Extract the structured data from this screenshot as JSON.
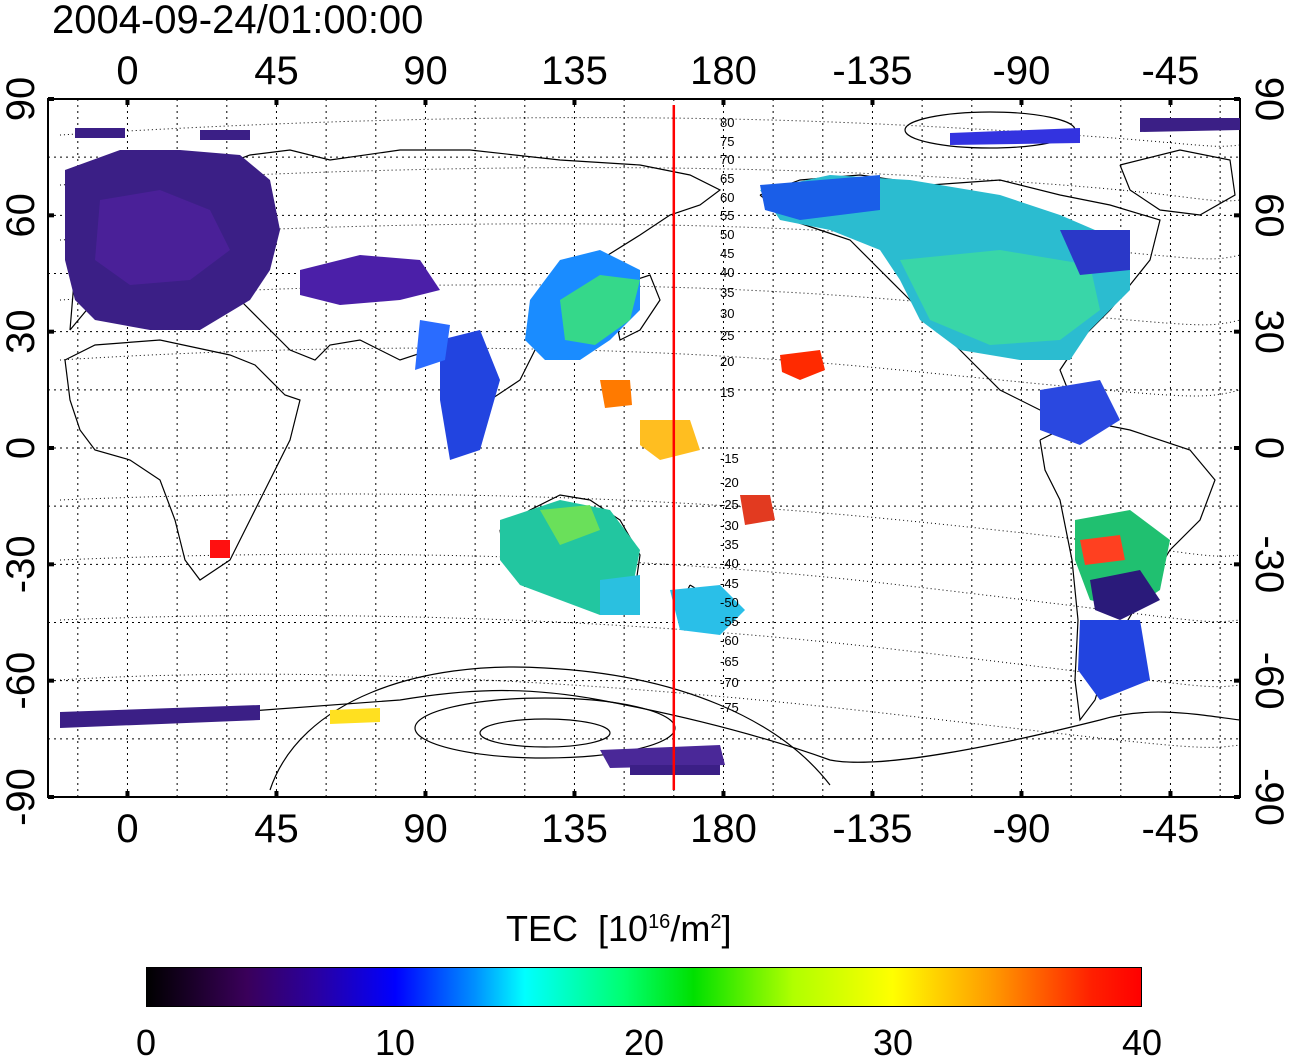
{
  "title": "2004-09-24/01:00:00",
  "map": {
    "projection": "equirectangular",
    "lon_ticks_top": [
      "0",
      "45",
      "90",
      "135",
      "180",
      "-135",
      "-90",
      "-45"
    ],
    "lon_ticks_bottom": [
      "0",
      "45",
      "90",
      "135",
      "180",
      "-135",
      "-90",
      "-45"
    ],
    "lat_ticks_left": [
      "90",
      "60",
      "30",
      "0",
      "-30",
      "-60",
      "-90"
    ],
    "lat_ticks_right": [
      "90",
      "60",
      "30",
      "0",
      "-30",
      "-60",
      "-90"
    ],
    "lon_tick_values": [
      0,
      45,
      90,
      135,
      180,
      225,
      270,
      315
    ],
    "lat_tick_values": [
      90,
      60,
      30,
      0,
      -30,
      -60,
      -90
    ],
    "lon_range": [
      -24,
      336
    ],
    "lat_range": [
      -90,
      90
    ],
    "grid_lines": "dotted, every 15 degrees",
    "meridian_marker_lon": 165,
    "meridian_marker_color": "#ff0000",
    "magnetic_latitude_labels": [
      "80",
      "75",
      "70",
      "65",
      "60",
      "55",
      "50",
      "45",
      "40",
      "35",
      "30",
      "25",
      "20",
      "15",
      "-15",
      "-20",
      "-25",
      "-30",
      "-35",
      "-40",
      "-45",
      "-50",
      "-55",
      "-60",
      "-65",
      "-70",
      "-75"
    ]
  },
  "colorbar": {
    "title": "TEC",
    "units_prefix": "[10",
    "units_exp": "16",
    "units_mid": "/m",
    "units_exp2": "2",
    "units_suffix": "]",
    "min": 0,
    "max": 40,
    "tick_labels": [
      "0",
      "10",
      "20",
      "30",
      "40"
    ],
    "colormap": [
      "#000000",
      "#3a005a",
      "#0000ff",
      "#00ffff",
      "#00e000",
      "#ffff00",
      "#ff0000"
    ]
  }
}
